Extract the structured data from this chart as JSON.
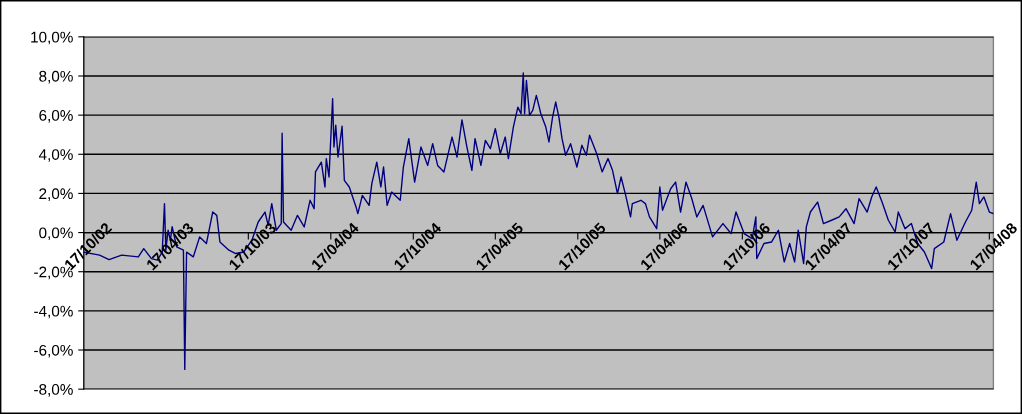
{
  "chart_data": {
    "type": "line",
    "x": [
      "2002-10-17",
      "2002-11-21",
      "2002-12-12",
      "2003-01-09",
      "2003-02-15",
      "2003-02-27",
      "2003-03-16",
      "2003-03-29",
      "2003-04-09",
      "2003-04-14",
      "2003-04-17",
      "2003-04-22",
      "2003-04-27",
      "2003-05-01",
      "2003-05-11",
      "2003-05-26",
      "2003-05-29",
      "2003-06-02",
      "2003-06-17",
      "2003-07-01",
      "2003-07-16",
      "2003-07-30",
      "2003-08-08",
      "2003-08-15",
      "2003-09-04",
      "2003-09-19",
      "2003-10-07",
      "2003-10-25",
      "2003-11-08",
      "2003-11-23",
      "2003-11-30",
      "2003-12-08",
      "2003-12-18",
      "2003-12-29",
      "2003-12-31",
      "2004-01-03",
      "2004-01-20",
      "2004-02-03",
      "2004-02-18",
      "2004-03-02",
      "2004-03-11",
      "2004-03-14",
      "2004-03-27",
      "2004-04-04",
      "2004-04-07",
      "2004-04-13",
      "2004-04-21",
      "2004-04-24",
      "2004-04-28",
      "2004-05-03",
      "2004-05-12",
      "2004-05-17",
      "2004-05-28",
      "2004-06-12",
      "2004-06-16",
      "2004-06-26",
      "2004-07-11",
      "2004-07-17",
      "2004-07-28",
      "2004-08-06",
      "2004-08-12",
      "2004-08-20",
      "2004-08-30",
      "2004-09-18",
      "2004-09-25",
      "2004-10-07",
      "2004-10-20",
      "2004-11-03",
      "2004-11-18",
      "2004-11-29",
      "2004-12-10",
      "2004-12-24",
      "2005-01-11",
      "2005-01-22",
      "2005-02-02",
      "2005-02-13",
      "2005-02-24",
      "2005-03-03",
      "2005-03-16",
      "2005-03-26",
      "2005-04-06",
      "2005-04-17",
      "2005-04-28",
      "2005-05-09",
      "2005-05-16",
      "2005-05-27",
      "2005-06-06",
      "2005-06-13",
      "2005-06-18",
      "2005-06-21",
      "2005-06-25",
      "2005-07-02",
      "2005-07-09",
      "2005-07-17",
      "2005-07-27",
      "2005-08-07",
      "2005-08-14",
      "2005-08-22",
      "2005-08-29",
      "2005-09-05",
      "2005-09-12",
      "2005-09-20",
      "2005-10-01",
      "2005-10-15",
      "2005-10-26",
      "2005-11-05",
      "2005-11-12",
      "2005-11-28",
      "2005-12-10",
      "2005-12-23",
      "2006-01-02",
      "2006-01-13",
      "2006-01-21",
      "2006-02-01",
      "2006-02-11",
      "2006-02-15",
      "2006-03-06",
      "2006-03-16",
      "2006-03-25",
      "2006-04-10",
      "2006-04-17",
      "2006-04-23",
      "2006-05-04",
      "2006-05-11",
      "2006-05-22",
      "2006-06-02",
      "2006-06-14",
      "2006-06-27",
      "2006-07-08",
      "2006-07-22",
      "2006-08-12",
      "2006-09-04",
      "2006-09-22",
      "2006-10-03",
      "2006-10-21",
      "2006-11-08",
      "2006-11-16",
      "2006-11-18",
      "2006-12-04",
      "2006-12-21",
      "2007-01-05",
      "2007-01-18",
      "2007-01-30",
      "2007-02-10",
      "2007-02-18",
      "2007-03-02",
      "2007-03-08",
      "2007-03-17",
      "2007-04-02",
      "2007-04-15",
      "2007-05-03",
      "2007-05-20",
      "2007-06-04",
      "2007-06-22",
      "2007-07-03",
      "2007-07-21",
      "2007-07-31",
      "2007-08-10",
      "2007-08-23",
      "2007-09-06",
      "2007-09-21",
      "2007-09-28",
      "2007-10-13",
      "2007-10-27",
      "2007-11-10",
      "2007-11-25",
      "2007-12-11",
      "2007-12-17",
      "2008-01-07",
      "2008-01-22",
      "2008-02-05",
      "2008-02-24",
      "2008-03-09",
      "2008-03-19",
      "2008-03-26",
      "2008-04-05",
      "2008-04-17",
      "2008-04-26"
    ],
    "series": [
      {
        "color": "#000080",
        "values": [
          -1.0,
          -1.15,
          -1.38,
          -1.15,
          -1.24,
          -0.82,
          -1.33,
          -1.41,
          -1.0,
          1.48,
          -0.9,
          0.12,
          -0.4,
          0.3,
          -0.73,
          -0.9,
          -6.99,
          -1.0,
          -1.24,
          -0.22,
          -0.56,
          1.05,
          0.88,
          -0.48,
          -0.9,
          -1.07,
          -0.99,
          -0.39,
          0.54,
          1.05,
          0.37,
          1.48,
          0.12,
          0.46,
          5.08,
          0.54,
          0.12,
          0.88,
          0.29,
          1.65,
          1.22,
          3.1,
          3.6,
          2.33,
          3.78,
          2.84,
          6.84,
          4.37,
          5.48,
          3.86,
          5.43,
          2.67,
          2.33,
          1.31,
          0.97,
          1.9,
          1.39,
          2.5,
          3.6,
          2.33,
          3.35,
          1.39,
          2.07,
          1.65,
          3.35,
          4.8,
          2.58,
          4.37,
          3.43,
          4.54,
          3.43,
          3.1,
          4.88,
          3.86,
          5.76,
          4.37,
          3.18,
          4.8,
          3.43,
          4.71,
          4.29,
          5.31,
          4.03,
          4.88,
          3.78,
          5.39,
          6.41,
          6.07,
          8.15,
          6.07,
          7.77,
          5.99,
          6.24,
          7.01,
          6.07,
          5.39,
          4.63,
          5.9,
          6.67,
          5.9,
          4.8,
          3.95,
          4.54,
          3.35,
          4.46,
          3.95,
          4.97,
          4.03,
          3.1,
          3.78,
          3.18,
          1.99,
          2.84,
          1.82,
          0.8,
          1.48,
          1.65,
          1.48,
          0.8,
          0.2,
          2.33,
          1.14,
          1.82,
          2.24,
          2.58,
          1.05,
          2.58,
          1.73,
          0.8,
          1.39,
          -0.22,
          0.46,
          -0.05,
          1.05,
          -0.05,
          -0.31,
          0.8,
          -1.33,
          -0.56,
          -0.48,
          0.12,
          -1.5,
          -0.56,
          -1.5,
          0.12,
          -1.58,
          0.29,
          1.05,
          1.56,
          0.46,
          0.63,
          0.8,
          1.22,
          0.46,
          1.73,
          1.05,
          1.82,
          2.33,
          1.56,
          0.63,
          0.03,
          1.05,
          0.2,
          0.46,
          -0.56,
          -0.99,
          -1.84,
          -0.82,
          -0.48,
          0.97,
          -0.39,
          0.54,
          1.14,
          2.58,
          1.48,
          1.82,
          1.05,
          0.97
        ]
      }
    ],
    "xlim": [
      "2002-10-17",
      "2008-04-26"
    ],
    "xticks": [
      {
        "value": "2002-10-17",
        "label": "17/10/02"
      },
      {
        "value": "2003-04-17",
        "label": "17/04/03"
      },
      {
        "value": "2003-10-17",
        "label": "17/10/03"
      },
      {
        "value": "2004-04-17",
        "label": "17/04/04"
      },
      {
        "value": "2004-10-17",
        "label": "17/10/04"
      },
      {
        "value": "2005-04-17",
        "label": "17/04/05"
      },
      {
        "value": "2005-10-17",
        "label": "17/10/05"
      },
      {
        "value": "2006-04-17",
        "label": "17/04/06"
      },
      {
        "value": "2006-10-17",
        "label": "17/10/06"
      },
      {
        "value": "2007-04-17",
        "label": "17/04/07"
      },
      {
        "value": "2007-10-17",
        "label": "17/10/07"
      },
      {
        "value": "2008-04-17",
        "label": "17/04/08"
      }
    ],
    "ylim": [
      -8,
      10
    ],
    "yticks": [
      {
        "value": -8,
        "label": "-8,0%"
      },
      {
        "value": -6,
        "label": "-6,0%"
      },
      {
        "value": -4,
        "label": "-4,0%"
      },
      {
        "value": -2,
        "label": "-2,0%"
      },
      {
        "value": 0,
        "label": "0,0%"
      },
      {
        "value": 2,
        "label": "2,0%"
      },
      {
        "value": 4,
        "label": "4,0%"
      },
      {
        "value": 6,
        "label": "6,0%"
      },
      {
        "value": 8,
        "label": "8,0%"
      },
      {
        "value": 10,
        "label": "10,0%"
      }
    ],
    "grid": "y",
    "marker": "none",
    "line_style": "solid"
  }
}
